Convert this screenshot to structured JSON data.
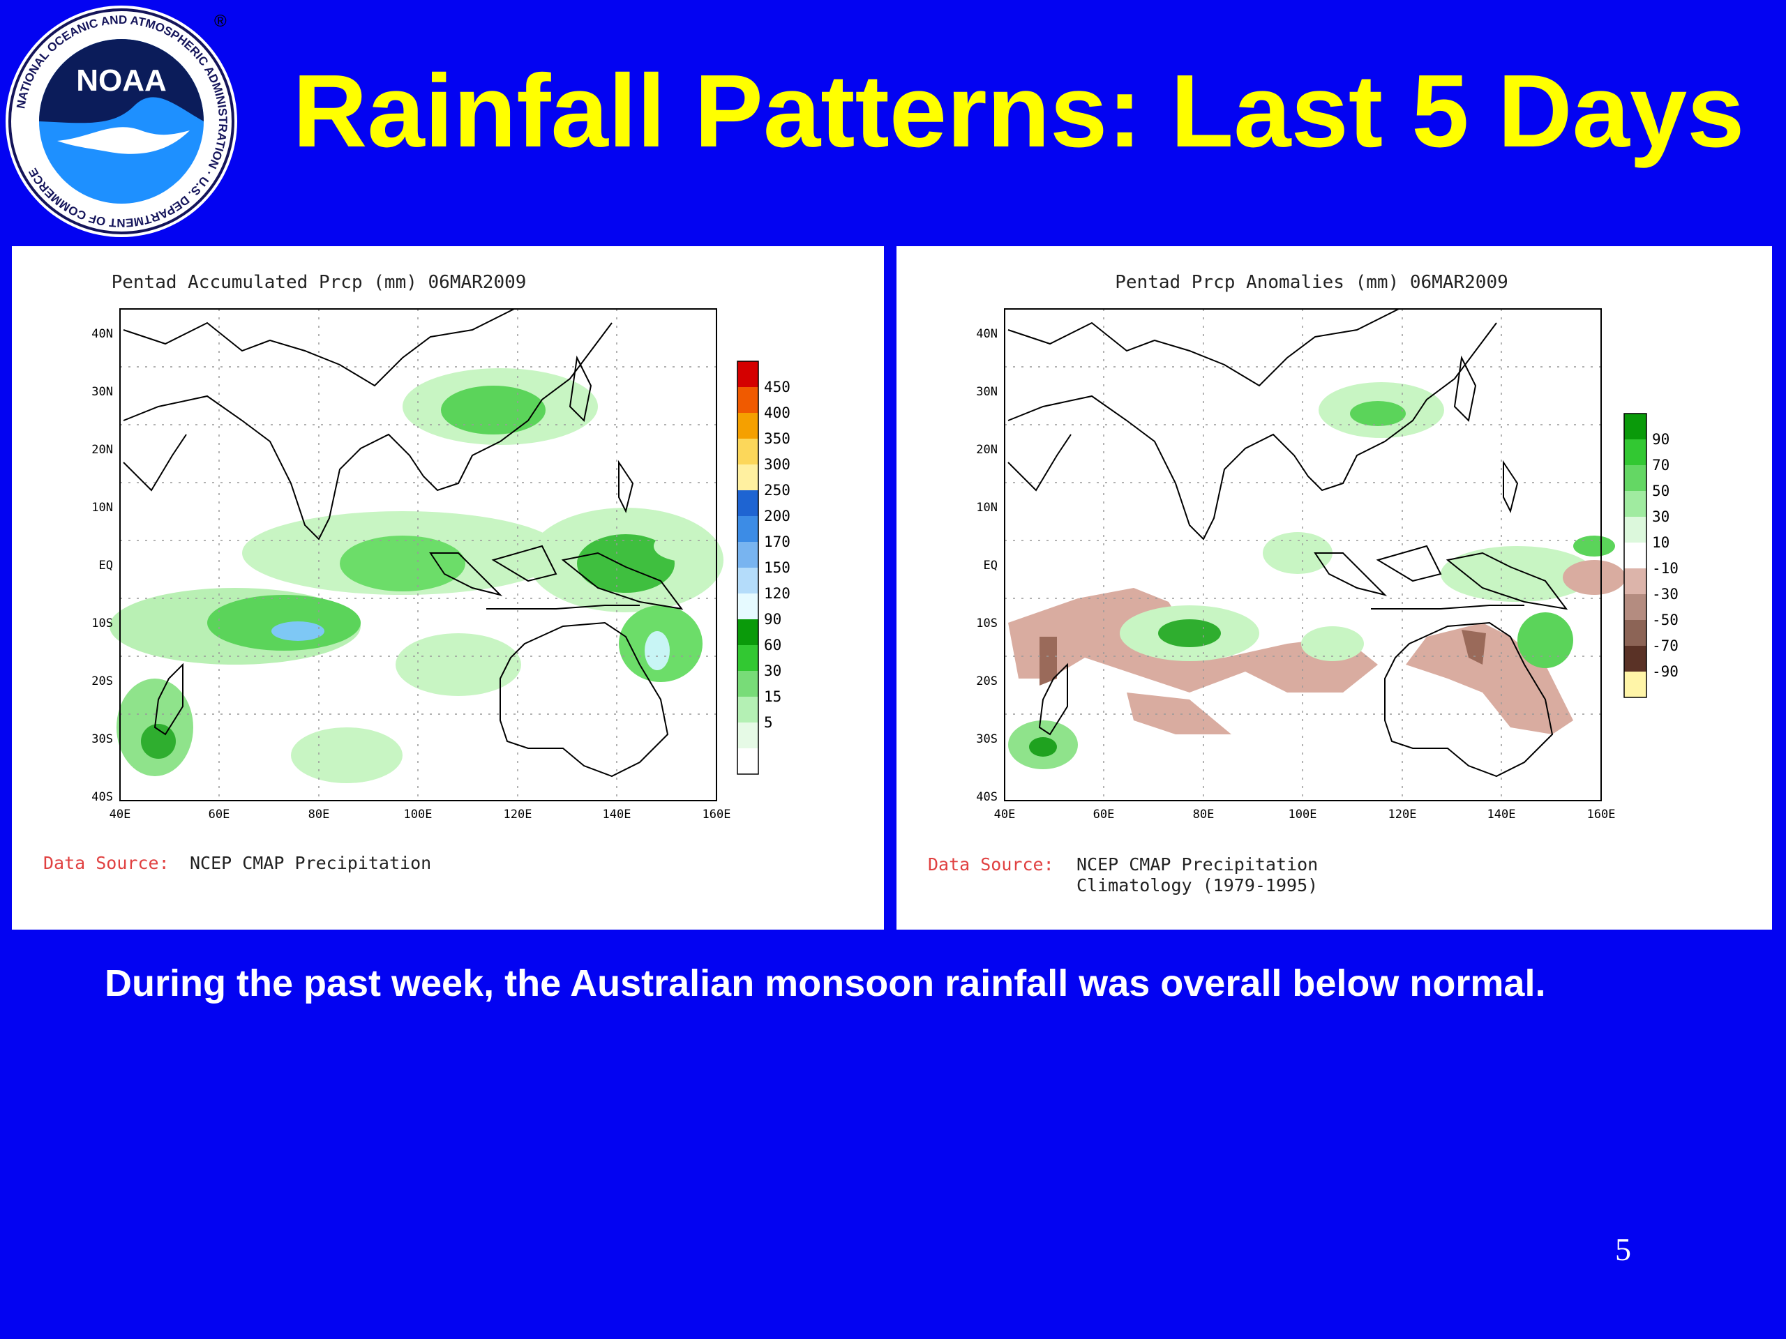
{
  "slide": {
    "title": "Rainfall Patterns: Last 5 Days",
    "summary": "During the past week, the Australian monsoon rainfall was overall below normal.",
    "page_number": "5",
    "colors": {
      "background": "#0303f2",
      "title": "#ffff00",
      "text": "#ffffff"
    }
  },
  "logo": {
    "wordmark": "NOAA",
    "ring_text": "NATIONAL OCEANIC AND ATMOSPHERIC ADMINISTRATION · U.S. DEPARTMENT OF COMMERCE",
    "registered": "®",
    "icon": "noaa-logo"
  },
  "maps": {
    "left": {
      "title": "Pentad Accumulated Prcp (mm) 06MAR2009",
      "source_label": "Data Source:",
      "source_text": "NCEP CMAP Precipitation",
      "source_text_2": "",
      "legend": [
        "450",
        "400",
        "350",
        "300",
        "250",
        "200",
        "170",
        "150",
        "120",
        "90",
        "60",
        "30",
        "15",
        "5"
      ]
    },
    "right": {
      "title": "Pentad Prcp Anomalies (mm) 06MAR2009",
      "source_label": "Data Source:",
      "source_text": "NCEP CMAP Precipitation",
      "source_text_2": "Climatology (1979-1995)",
      "legend": [
        "90",
        "70",
        "50",
        "30",
        "10",
        "-10",
        "-30",
        "-50",
        "-70",
        "-90"
      ]
    },
    "lat_labels": [
      "40N",
      "30N",
      "20N",
      "10N",
      "EQ",
      "10S",
      "20S",
      "30S",
      "40S"
    ],
    "lon_labels": [
      "40E",
      "60E",
      "80E",
      "100E",
      "120E",
      "140E",
      "160E"
    ]
  }
}
